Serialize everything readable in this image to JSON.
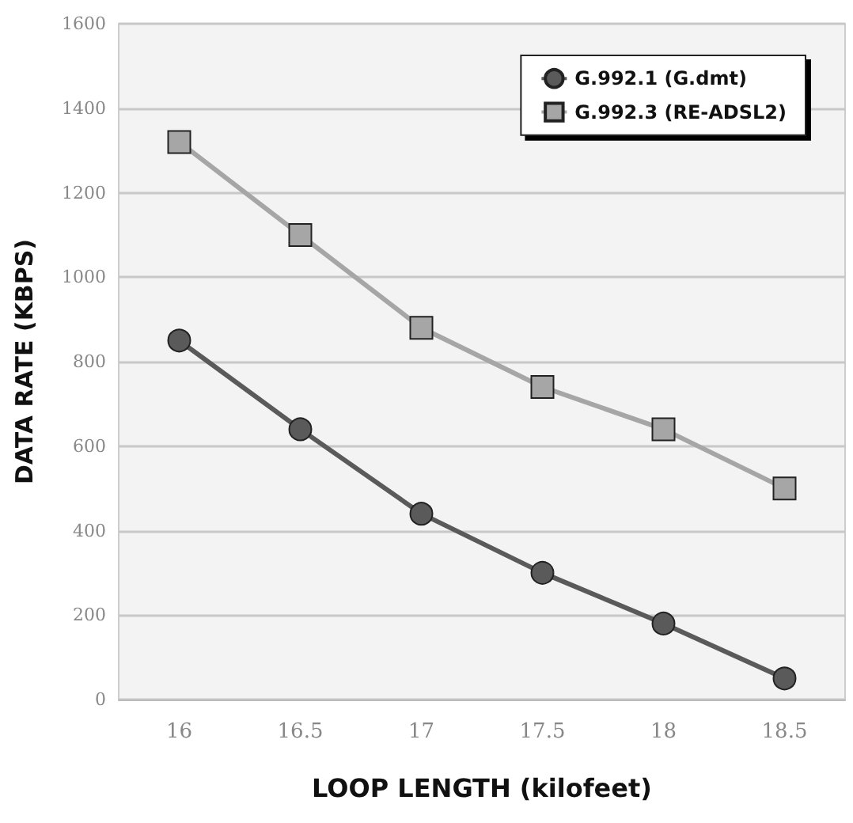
{
  "chart_data": {
    "type": "line",
    "xlabel": "LOOP LENGTH (kilofeet)",
    "ylabel": "DATA RATE (KBPS)",
    "categories": [
      "16",
      "16.5",
      "17",
      "17.5",
      "18",
      "18.5"
    ],
    "series": [
      {
        "name": "G.992.1 (G.dmt)",
        "color": "#5a5a5a",
        "marker": "circle",
        "values": [
          850,
          640,
          440,
          300,
          180,
          50
        ]
      },
      {
        "name": "G.992.3 (RE-ADSL2)",
        "color": "#a6a6a6",
        "marker": "square",
        "values": [
          1320,
          1100,
          880,
          740,
          640,
          500
        ]
      }
    ],
    "ylim": [
      0,
      1600
    ],
    "yticks": [
      0,
      200,
      400,
      600,
      800,
      1000,
      1200,
      1400,
      1600
    ],
    "grid": "y",
    "legend": "top right"
  }
}
